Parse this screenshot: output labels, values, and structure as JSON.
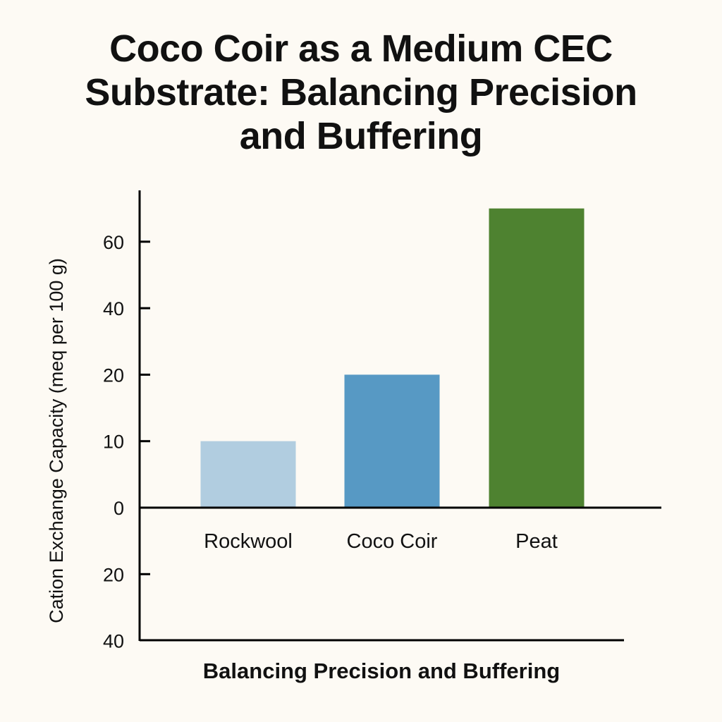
{
  "chart_data": {
    "type": "bar",
    "title_lines": [
      "Coco Coir as a Medium CEC",
      "Substrate: Balancing Precision",
      "and Buffering"
    ],
    "title": "Coco Coir as a Medium CEC Substrate: Balancing Precision and Buffering",
    "xlabel": "Balancing Precision and Buffering",
    "ylabel": "Cation Exchange Capacity (meq per 100 g)",
    "categories": [
      "Rockwool",
      "Coco Coir",
      "Peat"
    ],
    "values": [
      10,
      20,
      70
    ],
    "colors": [
      "#b1cde0",
      "#5799c4",
      "#4e8230"
    ],
    "y_tick_labels_top_to_bottom": [
      "60",
      "40",
      "20",
      "10",
      "0",
      "20",
      "40"
    ],
    "y_tick_values_above_zero": [
      0,
      10,
      20,
      40,
      60
    ],
    "y_ticks_below_zero_labels": [
      "20",
      "40"
    ],
    "grid": false,
    "legend": "none"
  }
}
